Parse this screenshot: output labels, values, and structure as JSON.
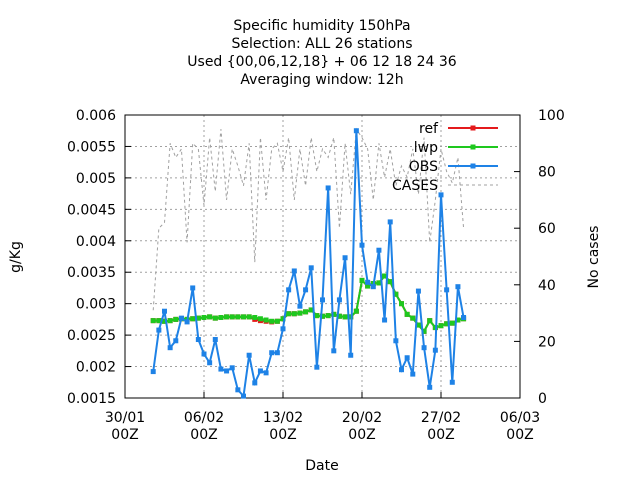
{
  "chart_data": {
    "type": "line",
    "title": [
      "Specific humidity 150hPa",
      "Selection: ALL      26 stations",
      "Used {00,06,12,18} + 06 12 18 24 36",
      "Averaging window: 12h"
    ],
    "xlabel": "Date",
    "ylabel": "g/Kg",
    "y2label": "No cases",
    "xlim": [
      "30/01 00Z",
      "06/03 00Z"
    ],
    "xticks": [
      "30/01 00Z",
      "06/02 00Z",
      "13/02 00Z",
      "20/02 00Z",
      "27/02 00Z",
      "06/03 00Z"
    ],
    "ylim": [
      0.0015,
      0.006
    ],
    "yticks": [
      0.0015,
      0.002,
      0.0025,
      0.003,
      0.0035,
      0.004,
      0.0045,
      0.005,
      0.0055,
      0.006
    ],
    "y2lim": [
      0,
      100
    ],
    "y2ticks": [
      0,
      20,
      40,
      60,
      80,
      100
    ],
    "grid": true,
    "legend": "top-right",
    "x": [
      "01/02 12Z",
      "02/02 00Z",
      "02/02 12Z",
      "03/02 00Z",
      "03/02 12Z",
      "04/02 00Z",
      "04/02 12Z",
      "05/02 00Z",
      "05/02 12Z",
      "06/02 00Z",
      "06/02 12Z",
      "07/02 00Z",
      "07/02 12Z",
      "08/02 00Z",
      "08/02 12Z",
      "09/02 00Z",
      "09/02 12Z",
      "10/02 00Z",
      "10/02 12Z",
      "11/02 00Z",
      "11/02 12Z",
      "12/02 00Z",
      "12/02 12Z",
      "13/02 00Z",
      "13/02 12Z",
      "14/02 00Z",
      "14/02 12Z",
      "15/02 00Z",
      "15/02 12Z",
      "16/02 00Z",
      "16/02 12Z",
      "17/02 00Z",
      "17/02 12Z",
      "18/02 00Z",
      "18/02 12Z",
      "19/02 00Z",
      "19/02 12Z",
      "20/02 00Z",
      "20/02 12Z",
      "21/02 00Z",
      "21/02 12Z",
      "22/02 00Z",
      "22/02 12Z",
      "23/02 00Z",
      "23/02 12Z",
      "24/02 00Z",
      "24/02 12Z",
      "25/02 00Z",
      "25/02 12Z",
      "26/02 00Z",
      "26/02 12Z",
      "27/02 00Z",
      "27/02 12Z",
      "28/02 00Z",
      "28/02 12Z",
      "01/03 00Z"
    ],
    "series": [
      {
        "name": "ref",
        "color": "#e41a1c",
        "style": "solid",
        "marker": true,
        "values": [
          0.00273,
          0.00273,
          0.00272,
          0.00273,
          0.00275,
          0.00276,
          0.00275,
          0.00276,
          0.00277,
          0.00278,
          0.00279,
          0.00277,
          0.00278,
          0.00279,
          0.00279,
          0.00279,
          0.00279,
          0.00279,
          0.00275,
          0.00273,
          0.00272,
          0.00271,
          0.00272,
          0.00276,
          0.00284,
          0.00284,
          0.00285,
          0.00287,
          0.0029,
          0.00281,
          0.0028,
          0.00281,
          0.00283,
          0.0028,
          0.00279,
          0.00279,
          0.00288,
          0.00337,
          0.00328,
          0.00332,
          0.00333,
          0.00344,
          0.00335,
          0.00315,
          0.003,
          0.00283,
          0.00277,
          0.00266,
          0.00256,
          0.00273,
          0.00262,
          0.00265,
          0.00268,
          0.00269,
          0.00274,
          0.00276
        ]
      },
      {
        "name": "lwp",
        "color": "#1ec81e",
        "style": "solid",
        "marker": true,
        "values": [
          0.00273,
          0.00273,
          0.00272,
          0.00273,
          0.00275,
          0.00276,
          0.00275,
          0.00276,
          0.00277,
          0.00278,
          0.00279,
          0.00277,
          0.00278,
          0.00279,
          0.00279,
          0.00279,
          0.00279,
          0.00279,
          0.00278,
          0.00276,
          0.00274,
          0.00272,
          0.00272,
          0.00276,
          0.00284,
          0.00284,
          0.00285,
          0.00287,
          0.0029,
          0.00281,
          0.0028,
          0.00281,
          0.00283,
          0.0028,
          0.00279,
          0.00279,
          0.00288,
          0.00337,
          0.00328,
          0.00332,
          0.00333,
          0.00344,
          0.00335,
          0.00315,
          0.003,
          0.00283,
          0.00277,
          0.00266,
          0.00256,
          0.00273,
          0.00262,
          0.00265,
          0.00268,
          0.00269,
          0.00274,
          0.00276
        ]
      },
      {
        "name": "OBS",
        "color": "#1e82e6",
        "style": "solid",
        "marker": true,
        "values": [
          0.00192,
          0.00258,
          0.00288,
          0.0023,
          0.00241,
          0.00277,
          0.00271,
          0.00325,
          0.00243,
          0.0022,
          0.00206,
          0.00243,
          0.00196,
          0.00193,
          0.00198,
          0.00163,
          0.00153,
          0.00218,
          0.00174,
          0.00193,
          0.0019,
          0.00222,
          0.00222,
          0.0026,
          0.00322,
          0.00352,
          0.00296,
          0.00322,
          0.00357,
          0.00199,
          0.00306,
          0.00484,
          0.00225,
          0.00306,
          0.00373,
          0.00218,
          0.00575,
          0.00393,
          0.00334,
          0.00327,
          0.00385,
          0.00274,
          0.0043,
          0.00241,
          0.00195,
          0.00214,
          0.00188,
          0.0032,
          0.0023,
          0.00167,
          0.00226,
          0.00473,
          0.00322,
          0.00175,
          0.00327,
          0.00278
        ]
      },
      {
        "name": "CASES",
        "color": "#a0a0a0",
        "style": "dashed",
        "marker": false,
        "axis": "y2",
        "values": [
          31,
          60,
          62,
          90,
          85,
          88,
          55,
          90,
          88,
          68,
          92,
          73,
          95,
          70,
          88,
          82,
          75,
          90,
          48,
          92,
          70,
          88,
          90,
          80,
          92,
          70,
          88,
          75,
          92,
          80,
          88,
          85,
          92,
          60,
          90,
          72,
          95,
          92,
          88,
          70,
          90,
          78,
          88,
          75,
          82,
          78,
          88,
          72,
          92,
          55,
          70,
          88,
          80,
          76,
          85,
          60
        ]
      }
    ]
  }
}
